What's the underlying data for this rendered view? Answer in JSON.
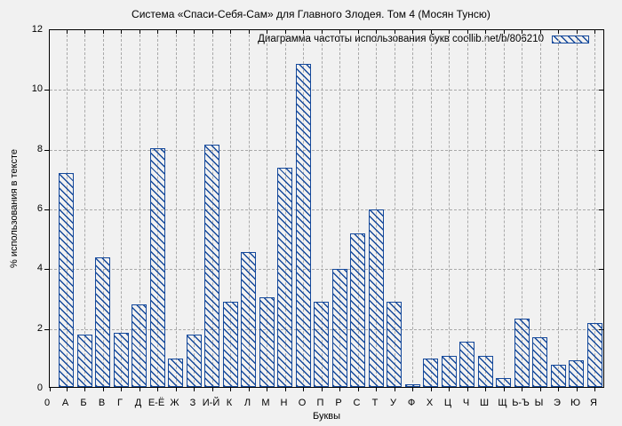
{
  "colors": {
    "bar_blue": "#15499b",
    "grid_gray": "#a9a9a9",
    "background": "#f1f1f1",
    "axis_black": "#000000"
  },
  "chart_data": {
    "type": "bar",
    "title": "Система «Спаси-Себя-Сам» для Главного Злодея. Том 4 (Мосян Тунсю)",
    "legend_label": "Диаграмма частоты использования букв coollib.net/b/806210",
    "legend_position": "top-right-inside",
    "xlabel": "Буквы",
    "ylabel": "% использования в тексте",
    "ylim": [
      0,
      12
    ],
    "y_ticks": [
      0,
      2,
      4,
      6,
      8,
      10,
      12
    ],
    "grid": true,
    "categories": [
      "0",
      "А",
      "Б",
      "В",
      "Г",
      "Д",
      "Е-Ё",
      "Ж",
      "З",
      "И-Й",
      "К",
      "Л",
      "М",
      "Н",
      "О",
      "П",
      "Р",
      "С",
      "Т",
      "У",
      "Ф",
      "Х",
      "Ц",
      "Ч",
      "Ш",
      "Щ",
      "Ь-Ъ",
      "Ы",
      "Э",
      "Ю",
      "Я"
    ],
    "values": [
      0,
      7.15,
      1.75,
      4.35,
      1.8,
      2.75,
      8.0,
      0.95,
      1.75,
      8.1,
      2.85,
      4.5,
      3.0,
      7.35,
      10.8,
      2.85,
      3.95,
      5.15,
      5.95,
      2.85,
      0.07,
      0.95,
      1.05,
      1.5,
      1.05,
      0.3,
      2.3,
      1.65,
      0.75,
      0.9,
      2.15
    ]
  }
}
